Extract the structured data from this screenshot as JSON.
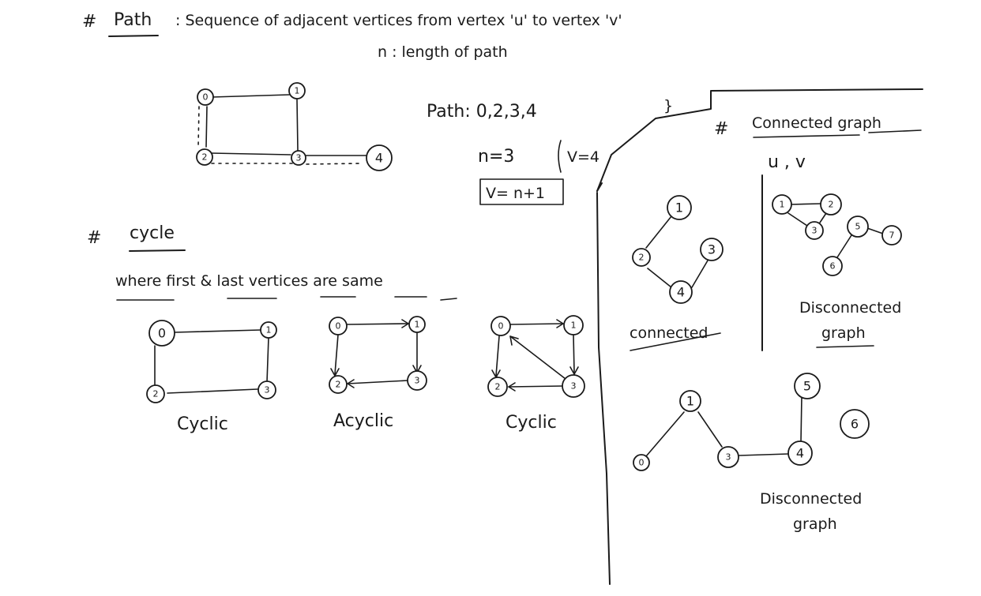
{
  "path_section": {
    "heading_hash": "#",
    "heading": "Path",
    "definition": ": Sequence of adjacent vertices from vertex 'u' to vertex 'v'",
    "length_note": "n : length of path",
    "path_example": "Path: 0,2,3,4",
    "brace": "}",
    "n_value": "n=3",
    "v_value": "V=4",
    "formula": "V= n+1",
    "nodes": [
      "0",
      "1",
      "2",
      "3",
      "4"
    ]
  },
  "cycle_section": {
    "heading_hash": "#",
    "heading": "cycle",
    "definition": "where first & last vertices are same",
    "graphs": [
      {
        "nodes": [
          "0",
          "1",
          "2",
          "3"
        ],
        "caption": "Cyclic"
      },
      {
        "nodes": [
          "0",
          "1",
          "2",
          "3"
        ],
        "caption": "Acyclic"
      },
      {
        "nodes": [
          "0",
          "1",
          "2",
          "3"
        ],
        "caption": "Cyclic"
      }
    ]
  },
  "connected_section": {
    "heading_hash": "#",
    "heading": "Connected graph",
    "uv": "u , v",
    "connected_caption": "connected",
    "connected_nodes": [
      "1",
      "2",
      "3",
      "4"
    ],
    "disconnected_caption_1": "Disconnected",
    "disconnected_caption_1b": "graph",
    "disconnected_nodes_1": [
      "1",
      "2",
      "3",
      "5",
      "7",
      "6"
    ],
    "disconnected_caption_2": "Disconnected",
    "disconnected_caption_2b": "graph",
    "disconnected_nodes_2": [
      "1",
      "0",
      "3",
      "4",
      "5",
      "6"
    ]
  }
}
